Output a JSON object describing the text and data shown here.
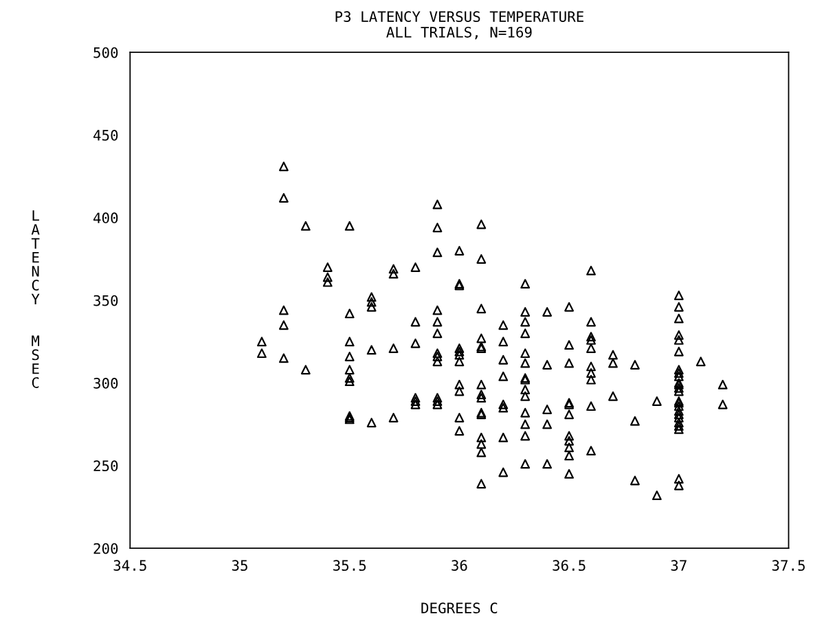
{
  "chart_data": {
    "type": "scatter",
    "title": "P3 LATENCY VERSUS TEMPERATURE",
    "subtitle": "ALL TRIALS, N=169",
    "xlabel": "DEGREES C",
    "ylabel": "LATENCY  MSEC",
    "xlim": [
      34.5,
      37.5
    ],
    "xticks": [
      34.5,
      35,
      35.5,
      36,
      36.5,
      37,
      37.5
    ],
    "ylim": [
      200,
      500
    ],
    "yticks": [
      200,
      250,
      300,
      350,
      400,
      450,
      500
    ],
    "marker": "triangle",
    "grid": false,
    "legend": false,
    "series": [
      {
        "color": "#000000",
        "x": [
          35.1,
          35.1,
          35.2,
          35.2,
          35.2,
          35.2,
          35.2,
          35.3,
          35.3,
          35.4,
          35.4,
          35.4,
          35.5,
          35.5,
          35.5,
          35.5,
          35.5,
          35.5,
          35.5,
          35.5,
          35.5,
          35.5,
          35.6,
          35.6,
          35.6,
          35.6,
          35.6,
          35.7,
          35.7,
          35.7,
          35.7,
          35.8,
          35.8,
          35.8,
          35.8,
          35.8,
          35.8,
          35.9,
          35.9,
          35.9,
          35.9,
          35.9,
          35.9,
          35.9,
          35.9,
          35.9,
          35.9,
          35.9,
          35.9,
          36.0,
          36.0,
          36.0,
          36.0,
          36.0,
          36.0,
          36.0,
          36.0,
          36.0,
          36.0,
          36.0,
          36.1,
          36.1,
          36.1,
          36.1,
          36.1,
          36.1,
          36.1,
          36.1,
          36.1,
          36.1,
          36.1,
          36.1,
          36.1,
          36.1,
          36.1,
          36.2,
          36.2,
          36.2,
          36.2,
          36.2,
          36.2,
          36.2,
          36.2,
          36.3,
          36.3,
          36.3,
          36.3,
          36.3,
          36.3,
          36.3,
          36.3,
          36.3,
          36.3,
          36.3,
          36.3,
          36.3,
          36.3,
          36.4,
          36.4,
          36.4,
          36.4,
          36.4,
          36.5,
          36.5,
          36.5,
          36.5,
          36.5,
          36.5,
          36.5,
          36.5,
          36.5,
          36.5,
          36.5,
          36.6,
          36.6,
          36.6,
          36.6,
          36.6,
          36.6,
          36.6,
          36.6,
          36.6,
          36.6,
          36.7,
          36.7,
          36.7,
          36.8,
          36.8,
          36.8,
          36.9,
          36.9,
          37.0,
          37.0,
          37.0,
          37.0,
          37.0,
          37.0,
          37.0,
          37.0,
          37.0,
          37.0,
          37.0,
          37.0,
          37.0,
          37.0,
          37.0,
          37.0,
          37.0,
          37.0,
          37.0,
          37.0,
          37.0,
          37.0,
          37.0,
          37.0,
          37.1,
          37.2,
          37.2
        ],
        "values": [
          325,
          318,
          431,
          412,
          344,
          335,
          315,
          395,
          308,
          370,
          364,
          361,
          395,
          342,
          325,
          316,
          308,
          303,
          301,
          280,
          279,
          278,
          352,
          349,
          346,
          320,
          276,
          369,
          366,
          321,
          279,
          370,
          337,
          324,
          291,
          289,
          287,
          408,
          394,
          379,
          344,
          337,
          330,
          318,
          316,
          313,
          291,
          289,
          287,
          380,
          360,
          359,
          321,
          319,
          317,
          313,
          299,
          295,
          279,
          271,
          396,
          375,
          345,
          327,
          322,
          321,
          299,
          293,
          291,
          282,
          281,
          267,
          263,
          258,
          239,
          335,
          325,
          314,
          304,
          287,
          285,
          267,
          246,
          360,
          343,
          337,
          330,
          318,
          312,
          303,
          302,
          296,
          292,
          282,
          275,
          268,
          251,
          343,
          311,
          284,
          275,
          251,
          346,
          323,
          312,
          288,
          287,
          281,
          268,
          265,
          261,
          256,
          245,
          368,
          337,
          328,
          326,
          321,
          310,
          306,
          302,
          286,
          259,
          317,
          312,
          292,
          311,
          277,
          241,
          289,
          232,
          353,
          346,
          339,
          329,
          326,
          319,
          308,
          306,
          304,
          300,
          299,
          297,
          295,
          289,
          288,
          286,
          283,
          281,
          279,
          276,
          274,
          272,
          242,
          238,
          313,
          299,
          287
        ]
      }
    ]
  }
}
